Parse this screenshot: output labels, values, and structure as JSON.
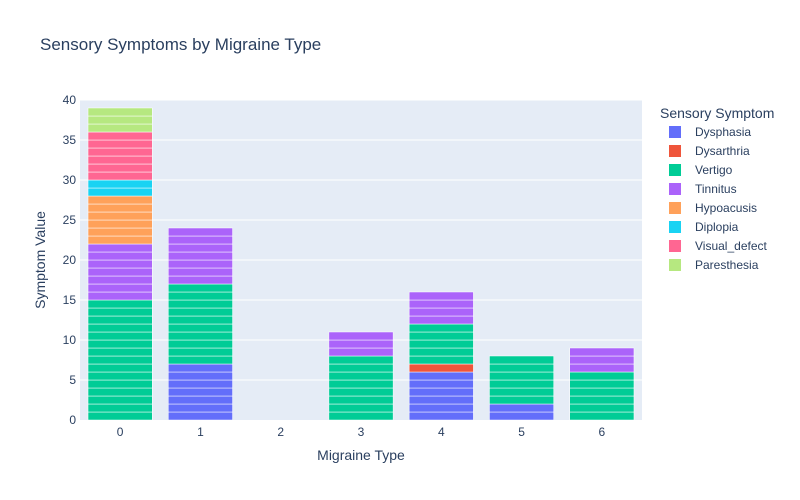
{
  "chart_data": {
    "type": "bar",
    "barmode": "stack",
    "title": "Sensory Symptoms by Migraine Type",
    "xlabel": "Migraine Type",
    "ylabel": "Symptom Value",
    "categories": [
      "0",
      "1",
      "2",
      "3",
      "4",
      "5",
      "6"
    ],
    "ylim": [
      0,
      40
    ],
    "yticks": [
      0,
      5,
      10,
      15,
      20,
      25,
      30,
      35,
      40
    ],
    "grid": true,
    "legend": {
      "title": "Sensory Symptom",
      "placement": "right"
    },
    "series": [
      {
        "name": "Dysphasia",
        "color": "#636efa",
        "values": [
          0,
          7,
          0,
          0,
          6,
          2,
          0
        ]
      },
      {
        "name": "Dysarthria",
        "color": "#ef553b",
        "values": [
          0,
          0,
          0,
          0,
          1,
          0,
          0
        ]
      },
      {
        "name": "Vertigo",
        "color": "#00cc96",
        "values": [
          15,
          10,
          0,
          8,
          5,
          6,
          6
        ]
      },
      {
        "name": "Tinnitus",
        "color": "#ab63fa",
        "values": [
          7,
          7,
          0,
          3,
          4,
          0,
          3
        ]
      },
      {
        "name": "Hypoacusis",
        "color": "#ffa15a",
        "values": [
          6,
          0,
          0,
          0,
          0,
          0,
          0
        ]
      },
      {
        "name": "Diplopia",
        "color": "#19d3f3",
        "values": [
          2,
          0,
          0,
          0,
          0,
          0,
          0
        ]
      },
      {
        "name": "Visual_defect",
        "color": "#ff6692",
        "values": [
          6,
          0,
          0,
          0,
          0,
          0,
          0
        ]
      },
      {
        "name": "Paresthesia",
        "color": "#b6e880",
        "values": [
          3,
          0,
          0,
          0,
          0,
          0,
          0
        ]
      }
    ]
  }
}
